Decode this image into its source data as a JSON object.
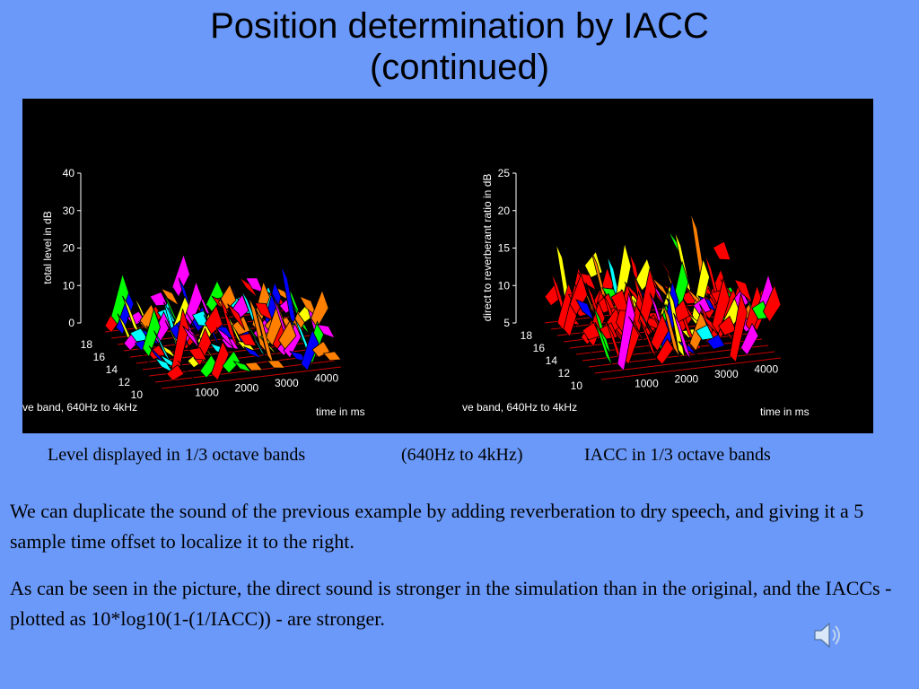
{
  "slide": {
    "title_line1": "Position determination by IACC",
    "title_line2": "(continued)",
    "caption_left": "Level displayed in 1/3 octave bands",
    "caption_mid": "(640Hz to 4kHz)",
    "caption_right": "IACC in 1/3 octave bands",
    "paragraph1": "We can duplicate the sound of the previous example by adding reverberation to dry speech, and giving it a 5 sample time offset to localize it to the right.",
    "paragraph2": "As can be seen in the picture, the direct sound is stronger in the simulation than in the original, and the IACCs - plotted as 10*log10(1-(1/IACC)) - are stronger.",
    "audio_icon": "speaker-icon"
  },
  "chart_data": [
    {
      "type": "surface3d",
      "zlabel": "total level in dB",
      "ylabel": "ve band, 640Hz to 4kHz",
      "xlabel": "time in ms",
      "z_ticks": [
        "0",
        "10",
        "20",
        "30",
        "40"
      ],
      "y_ticks": [
        "10",
        "12",
        "14",
        "16",
        "18"
      ],
      "x_ticks": [
        "1000",
        "2000",
        "3000",
        "4000"
      ],
      "zlim": [
        0,
        40
      ],
      "ylim": [
        9,
        18
      ],
      "xlim": [
        0,
        4500
      ],
      "colormap": [
        "#ff0000",
        "#ff8000",
        "#ffff00",
        "#00ff00",
        "#00ffff",
        "#0000ff",
        "#ff00ff"
      ]
    },
    {
      "type": "surface3d",
      "zlabel": "direct to reverberant ratio in dB",
      "ylabel": "ve band, 640Hz to 4kHz",
      "xlabel": "time in ms",
      "z_ticks": [
        "5",
        "10",
        "15",
        "20",
        "25"
      ],
      "y_ticks": [
        "10",
        "12",
        "14",
        "16",
        "18"
      ],
      "x_ticks": [
        "1000",
        "2000",
        "3000",
        "4000"
      ],
      "zlim": [
        5,
        25
      ],
      "ylim": [
        9,
        18
      ],
      "xlim": [
        0,
        4500
      ],
      "colormap": [
        "#ff0000",
        "#ff8000",
        "#ffff00",
        "#00ff00",
        "#00ffff",
        "#0000ff",
        "#ff00ff"
      ]
    }
  ]
}
